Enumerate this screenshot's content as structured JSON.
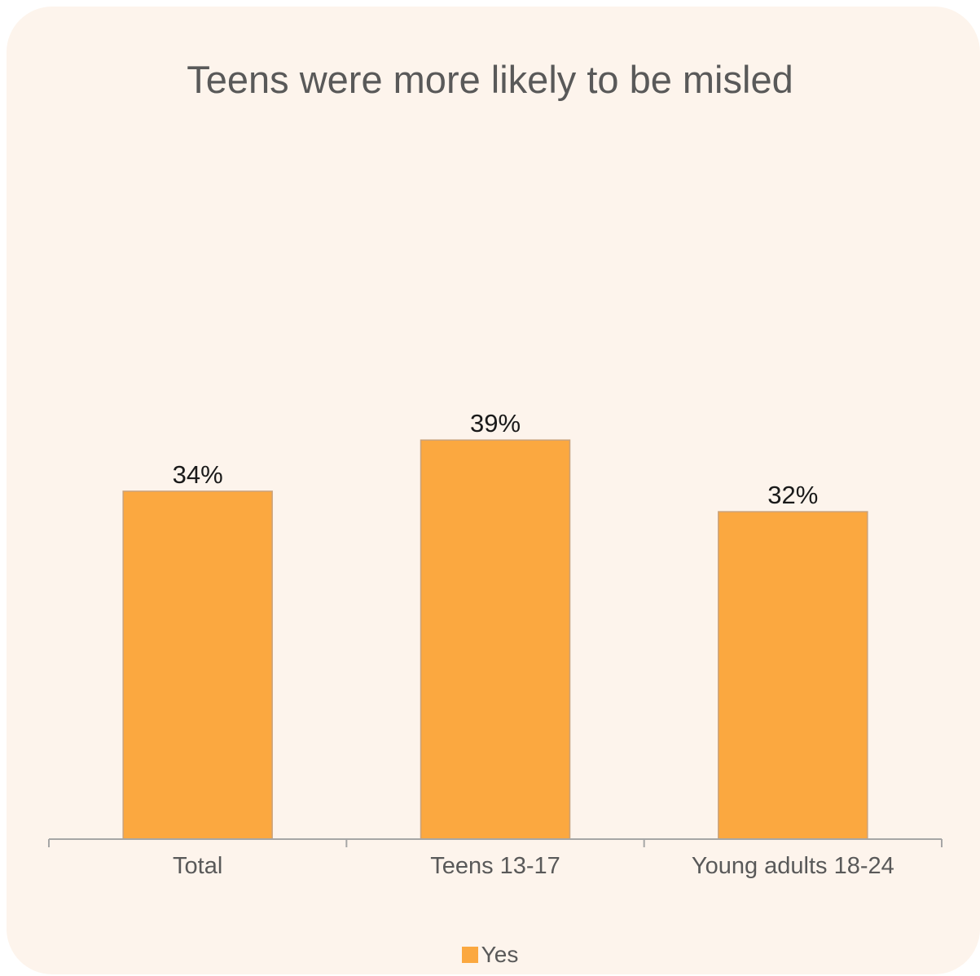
{
  "chart_data": {
    "type": "bar",
    "title": "Teens were more likely to be misled",
    "categories": [
      "Total",
      "Teens 13-17",
      "Young adults 18-24"
    ],
    "series": [
      {
        "name": "Yes",
        "values": [
          34,
          39,
          32
        ]
      }
    ],
    "data_labels": [
      "34%",
      "39%",
      "32%"
    ],
    "ylim": [
      0,
      80
    ],
    "grid": false,
    "legend_position": "bottom",
    "bar_color": "#fba840",
    "background_color": "#fdf4ec"
  }
}
